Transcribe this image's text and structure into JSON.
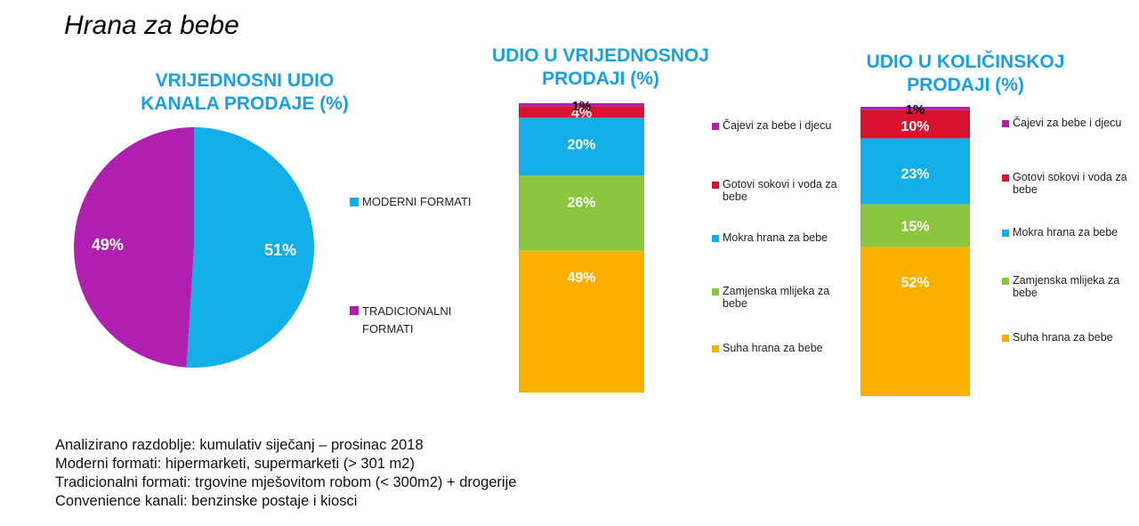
{
  "page_title": "Hrana za bebe",
  "chart_data": [
    {
      "type": "pie",
      "title": "VRIJEDNOSNI UDIO\nKANALA PRODAJE (%)",
      "slices": [
        {
          "label": "MODERNI FORMATI",
          "value": 51,
          "value_label": "51%",
          "color": "#13aee8"
        },
        {
          "label": "TRADICIONALNI FORMATI",
          "value": 49,
          "value_label": "49%",
          "color": "#b01fb0"
        }
      ],
      "legend_position": "right"
    },
    {
      "type": "bar",
      "stacked": true,
      "title": "UDIO U VRIJEDNOSNOJ\nPRODAJI (%)",
      "series": [
        {
          "name": "Suha hrana za bebe",
          "value": 49,
          "value_label": "49%",
          "color": "#fbb000"
        },
        {
          "name": "Zamjenska mlijeka za bebe",
          "value": 26,
          "value_label": "26%",
          "color": "#8cc63f"
        },
        {
          "name": "Mokra hrana za bebe",
          "value": 20,
          "value_label": "20%",
          "color": "#13aee8"
        },
        {
          "name": "Gotovi sokovi i voda za bebe",
          "value": 4,
          "value_label": "4%",
          "color": "#d9122e"
        },
        {
          "name": "Čajevi za bebe i djecu",
          "value": 1,
          "value_label": "1%",
          "color": "#b01fb0"
        }
      ],
      "legend_position": "right"
    },
    {
      "type": "bar",
      "stacked": true,
      "title": "UDIO U KOLIČINSKOJ\nPRODAJI (%)",
      "series": [
        {
          "name": "Suha hrana za bebe",
          "value": 52,
          "value_label": "52%",
          "color": "#fbb000"
        },
        {
          "name": "Zamjenska mlijeka za bebe",
          "value": 15,
          "value_label": "15%",
          "color": "#8cc63f"
        },
        {
          "name": "Mokra hrana za bebe",
          "value": 23,
          "value_label": "23%",
          "color": "#13aee8"
        },
        {
          "name": "Gotovi sokovi i voda za bebe",
          "value": 10,
          "value_label": "10%",
          "color": "#d9122e"
        },
        {
          "name": "Čajevi za bebe i djecu",
          "value": 1,
          "value_label": "1%",
          "color": "#b01fb0"
        }
      ],
      "legend_position": "right"
    }
  ],
  "legends": {
    "pie": [
      {
        "label": "MODERNI FORMATI",
        "color": "#13aee8"
      },
      {
        "label": "TRADICIONALNI\nFORMATI",
        "color": "#b01fb0"
      }
    ],
    "bars": [
      {
        "label": "Čajevi za bebe i djecu",
        "color": "#b01fb0"
      },
      {
        "label": "Gotovi sokovi i voda za\nbebe",
        "color": "#d9122e"
      },
      {
        "label": "Mokra hrana za bebe",
        "color": "#13aee8"
      },
      {
        "label": "Zamjenska mlijeka za\nbebe",
        "color": "#8cc63f"
      },
      {
        "label": "Suha hrana za bebe",
        "color": "#fbb000"
      }
    ]
  },
  "notes": [
    "Analizirano razdoblje: kumulativ siječanj – prosinac 2018",
    "Moderni formati: hipermarketi, supermarketi (> 301 m2)",
    "Tradicionalni formati: trgovine mješovitom robom (< 300m2) + drogerije",
    "Convenience kanali: benzinske postaje i kiosci"
  ]
}
